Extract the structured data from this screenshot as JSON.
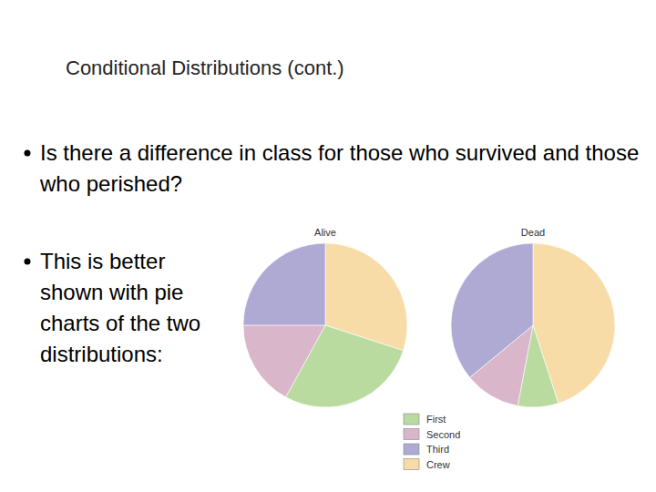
{
  "title": "Conditional Distributions (cont.)",
  "bullets": [
    "Is there a difference in class for those who survived and those who perished?",
    "This is better shown with pie charts of the two distributions:"
  ],
  "chart_data": [
    {
      "type": "pie",
      "title": "Alive",
      "categories": [
        "First",
        "Second",
        "Third",
        "Crew"
      ],
      "values": [
        28,
        17,
        25,
        30
      ],
      "colors": [
        "#b9dba0",
        "#d9b6c9",
        "#aeaad4",
        "#f7dca8"
      ],
      "legend": "bottom"
    },
    {
      "type": "pie",
      "title": "Dead",
      "categories": [
        "First",
        "Second",
        "Third",
        "Crew"
      ],
      "values": [
        8,
        11,
        36,
        45
      ],
      "colors": [
        "#b9dba0",
        "#d9b6c9",
        "#aeaad4",
        "#f7dca8"
      ]
    }
  ]
}
